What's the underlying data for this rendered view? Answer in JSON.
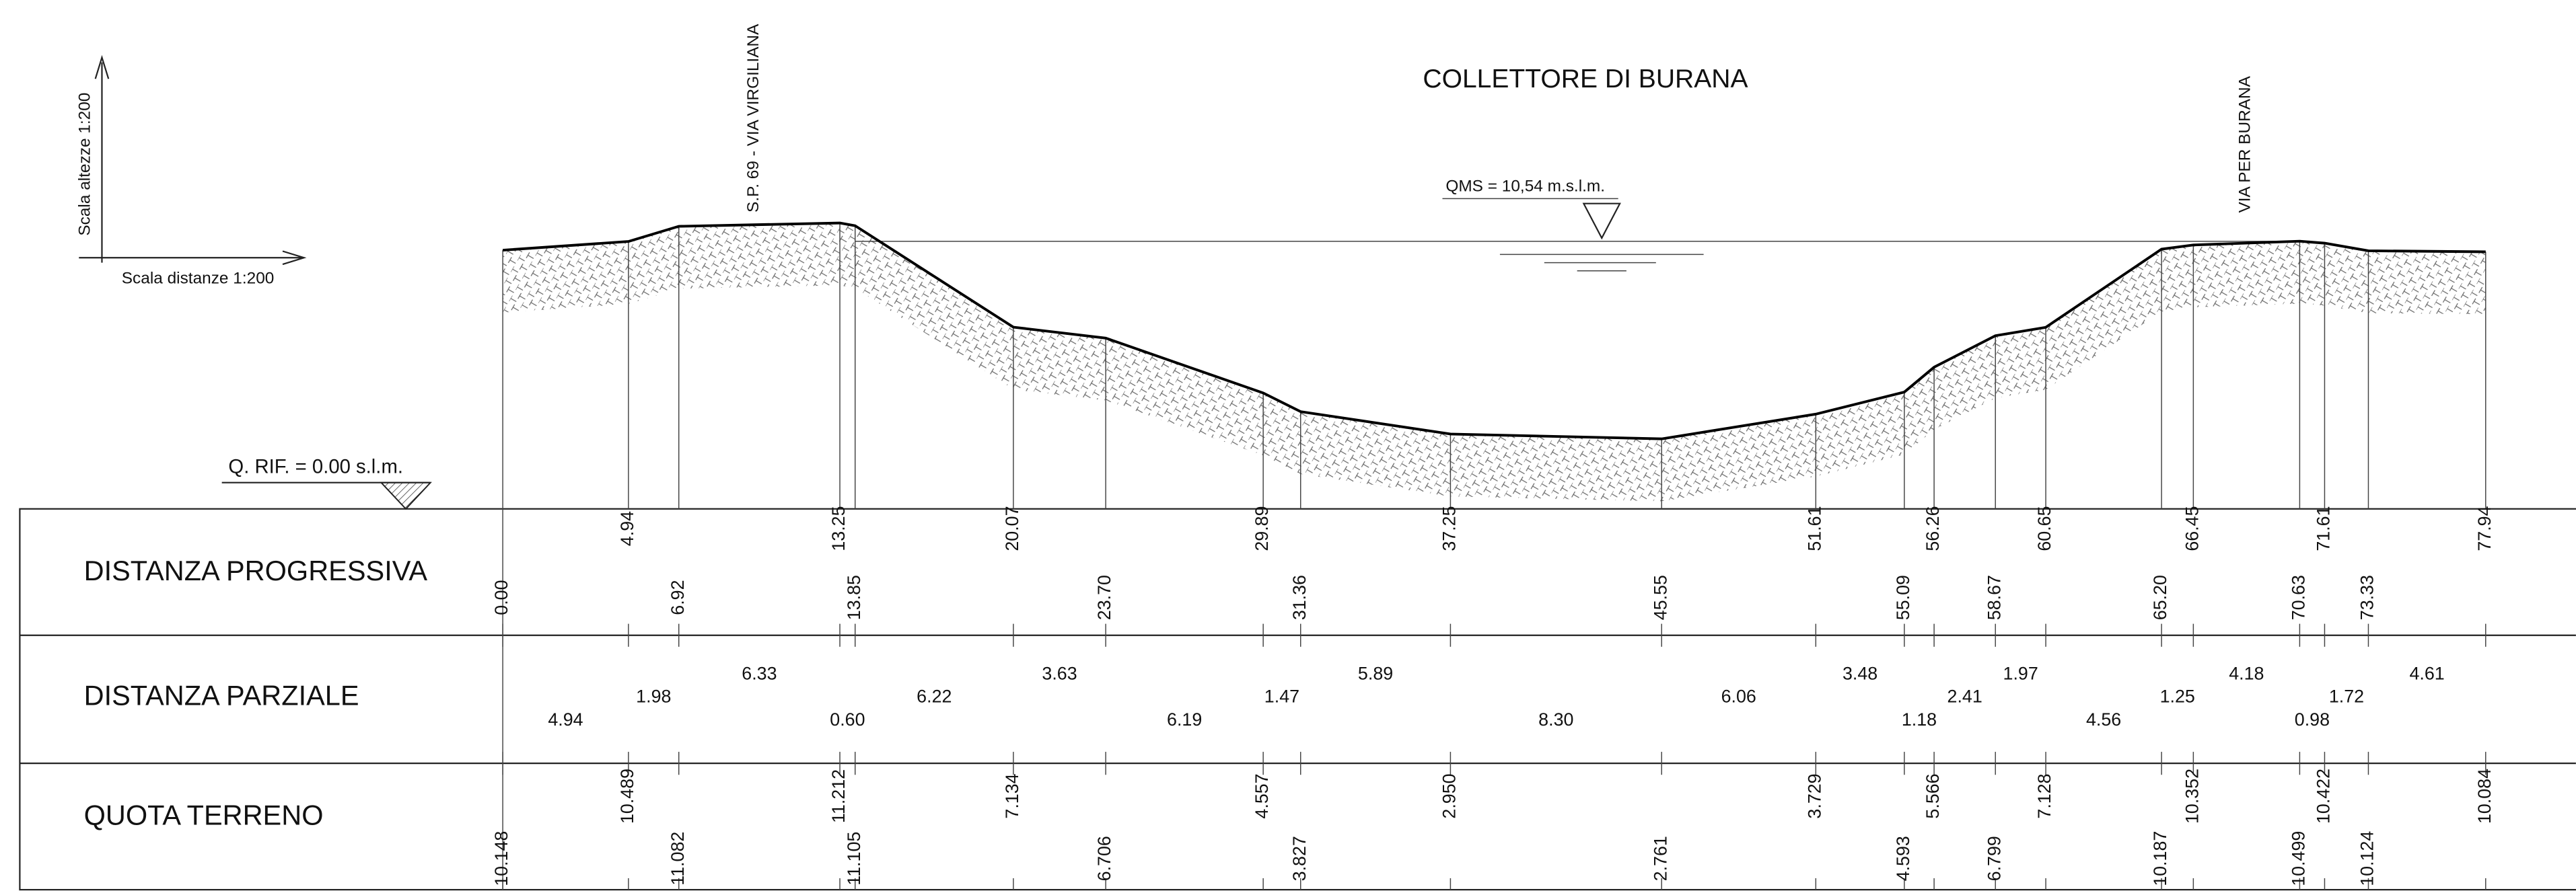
{
  "title": "COLLETTORE DI BURANA",
  "scale_heights": "Scala altezze 1:200",
  "scale_distances": "Scala distanze 1:200",
  "reference": "Q. RIF. = 0.00 s.l.m.",
  "water_level": "QMS = 10,54 m.s.l.m.",
  "road_labels": [
    "S.P. 69 - VIA VIRGILIANA",
    "VIA PER BURANA"
  ],
  "table": {
    "row_headers": [
      "DISTANZA PROGRESSIVA",
      "DISTANZA PARZIALE",
      "QUOTA TERRENO"
    ],
    "progressive": [
      "0.00",
      "4.94",
      "6.92",
      "13.25",
      "13.85",
      "20.07",
      "23.70",
      "29.89",
      "31.36",
      "37.25",
      "45.55",
      "51.61",
      "55.09",
      "56.26",
      "58.67",
      "60.65",
      "65.20",
      "66.45",
      "70.63",
      "71.61",
      "73.33",
      "77.94"
    ],
    "partial": [
      "4.94",
      "1.98",
      "6.33",
      "0.60",
      "6.22",
      "3.63",
      "6.19",
      "1.47",
      "5.89",
      "8.30",
      "6.06",
      "3.48",
      "1.18",
      "2.41",
      "1.97",
      "4.56",
      "1.25",
      "4.18",
      "0.98",
      "1.72",
      "4.61"
    ],
    "elevation": [
      "10.148",
      "10.489",
      "11.082",
      "11.212",
      "11.105",
      "7.134",
      "6.706",
      "4.557",
      "3.827",
      "2.950",
      "2.761",
      "3.729",
      "4.593",
      "5.566",
      "6.799",
      "7.128",
      "10.187",
      "10.352",
      "10.499",
      "10.422",
      "10.124",
      "10.084"
    ]
  }
}
